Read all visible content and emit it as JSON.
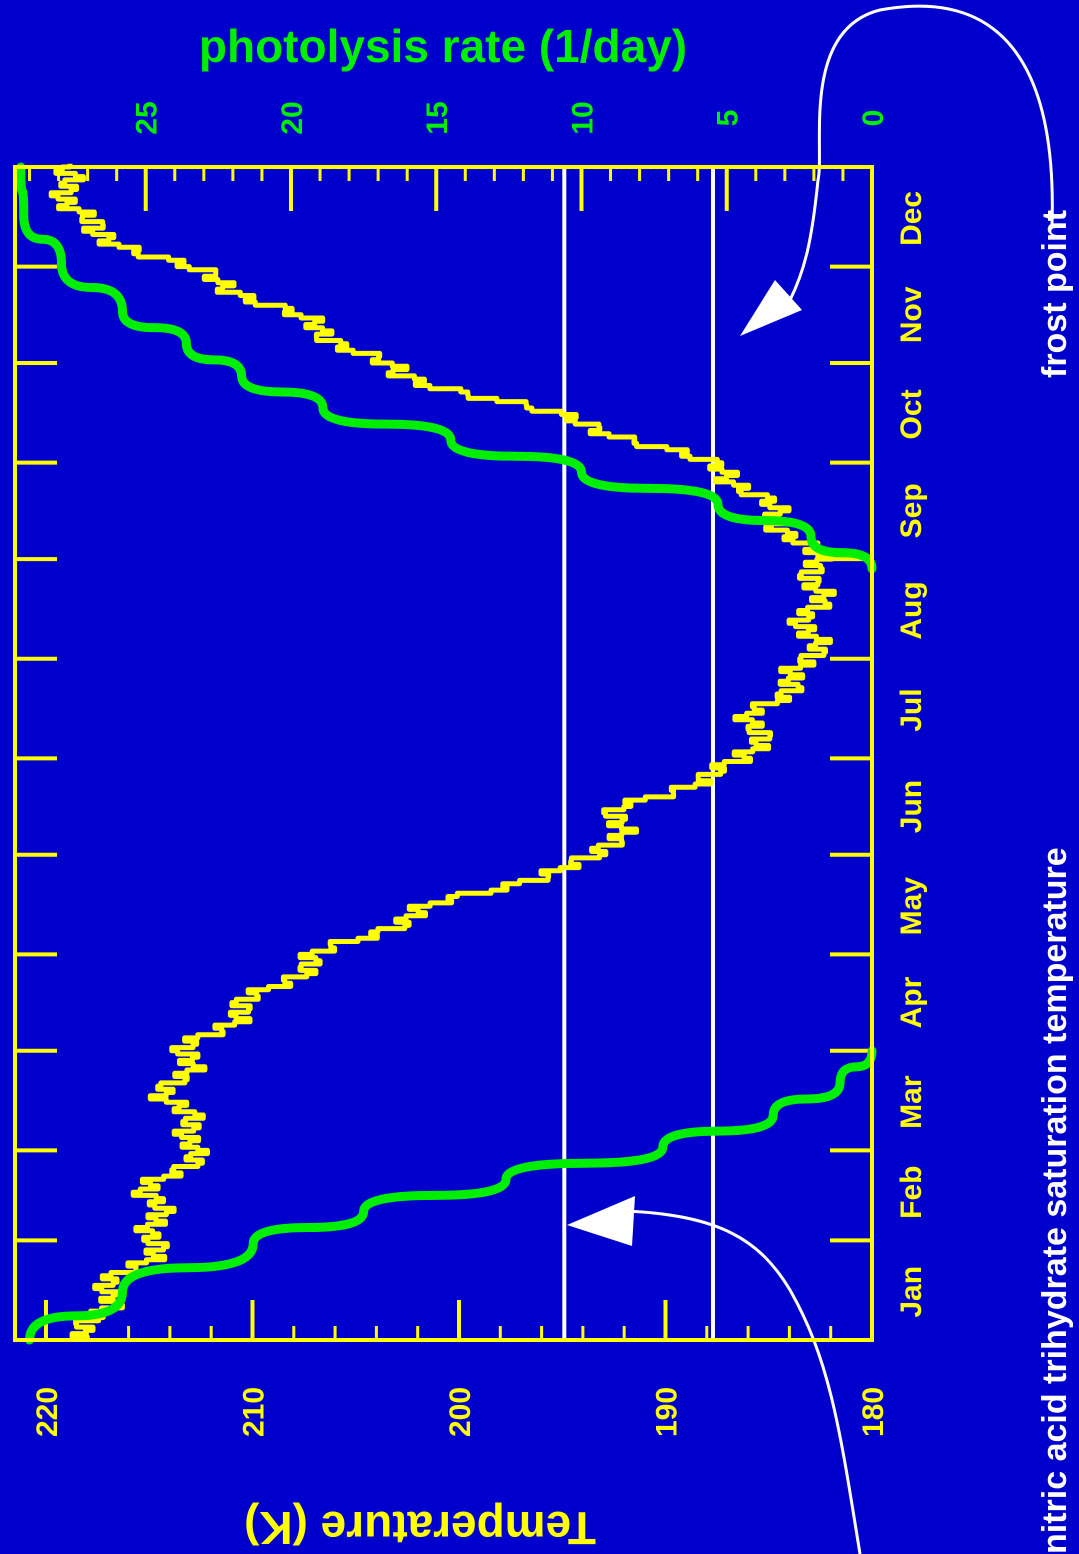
{
  "chart_data": {
    "type": "line",
    "colors": {
      "background": "#0000cc",
      "temperature": "#ffff00",
      "photolysis": "#00ee00",
      "reference": "#ffffff",
      "frame": "#ffff00"
    },
    "months": [
      "Jan",
      "Feb",
      "Mar",
      "Apr",
      "May",
      "Jun",
      "Jul",
      "Aug",
      "Sep",
      "Oct",
      "Nov",
      "Dec"
    ],
    "temperature_axis": {
      "label": "Temperature (K)",
      "ticks": [
        "180",
        "190",
        "200",
        "210",
        "220"
      ],
      "tick_values": [
        180,
        190,
        200,
        210,
        220
      ],
      "range": [
        180,
        221.5
      ]
    },
    "photolysis_axis": {
      "label": "photolysis rate (1/day)",
      "ticks": [
        "0",
        "5",
        "10",
        "15",
        "20",
        "25"
      ],
      "tick_values": [
        0,
        5,
        10,
        15,
        20,
        25
      ],
      "range": [
        0,
        29.5
      ]
    },
    "reference_lines": [
      {
        "label": "nitric acid trihydrate saturation temperature",
        "temperature": 194.9
      },
      {
        "label": "frost point",
        "temperature": 187.7
      }
    ],
    "series": [
      {
        "name": "temperature",
        "axis": "temperature",
        "x_day": [
          0,
          15,
          30,
          45,
          60,
          75,
          90,
          105,
          120,
          135,
          150,
          165,
          180,
          195,
          210,
          225,
          240,
          255,
          270,
          285,
          300,
          315,
          330,
          345,
          365
        ],
        "values": [
          218,
          217,
          214.5,
          215,
          212.5,
          214,
          213,
          210,
          206.5,
          201,
          193,
          192,
          186,
          185.5,
          183,
          183,
          182.5,
          184.5,
          187,
          194,
          203,
          207,
          212,
          218,
          219.5
        ]
      },
      {
        "name": "photolysis rate",
        "axis": "photolysis",
        "x_day": [
          0,
          15,
          30,
          40,
          50,
          60,
          70,
          80,
          90,
          240,
          250,
          260,
          270,
          280,
          290,
          300,
          310,
          320,
          335,
          350,
          365
        ],
        "values": [
          29,
          25.8,
          21.3,
          17.5,
          12.6,
          7.2,
          3.4,
          1.1,
          0,
          0,
          2.1,
          5.3,
          10,
          14.5,
          18.9,
          21.7,
          23.6,
          25.8,
          27.9,
          29.2,
          29.3
        ]
      }
    ]
  }
}
